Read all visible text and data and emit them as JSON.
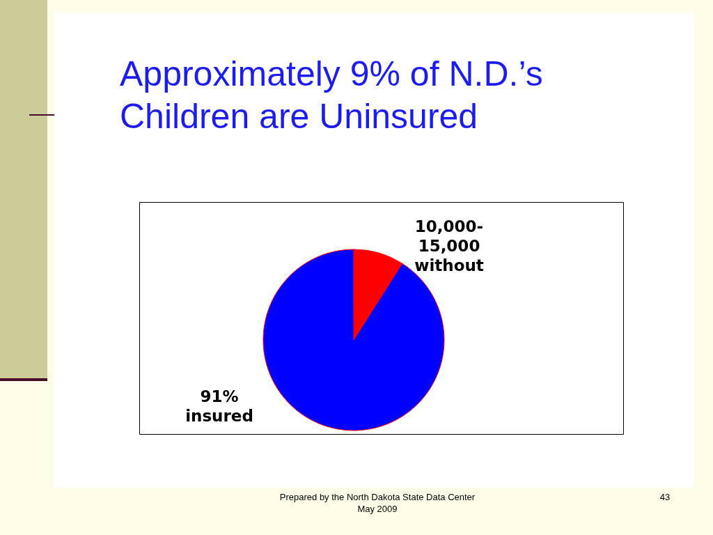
{
  "chart_data": {
    "type": "pie",
    "title": "Approximately 9% of N.D.’s Children are Uninsured",
    "categories": [
      "10,000-15,000 without",
      "91% insured"
    ],
    "values": [
      9,
      91
    ],
    "colors": [
      "#ff0000",
      "#0000ff"
    ],
    "annotations": [
      "Prepared by the North Dakota State Data Center May 2009",
      "43"
    ]
  }
}
